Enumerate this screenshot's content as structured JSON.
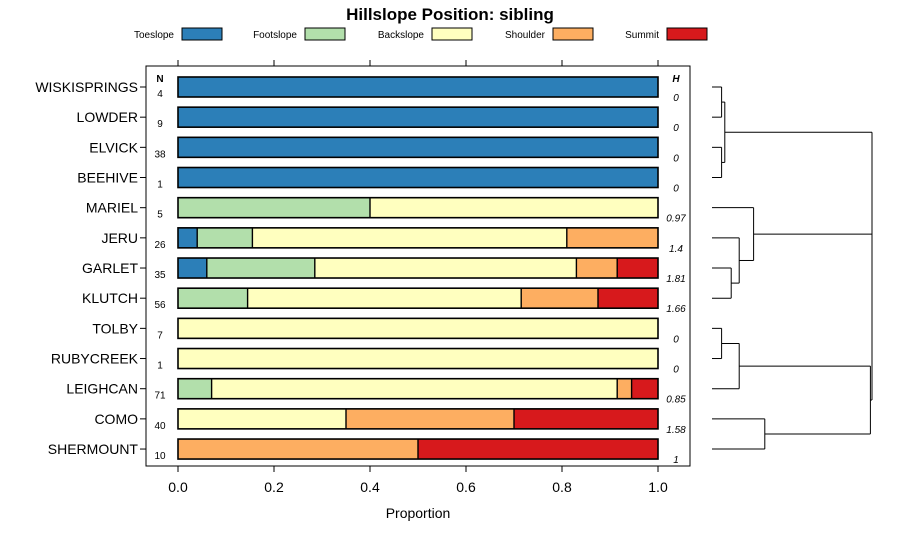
{
  "chart_data": {
    "type": "bar",
    "orientation": "horizontal",
    "stacked": true,
    "title": "Hillslope Position: sibling",
    "xlabel": "Proportion",
    "xlim": [
      0,
      1
    ],
    "x_ticks": [
      0.0,
      0.2,
      0.4,
      0.6,
      0.8,
      1.0
    ],
    "x_tick_labels": [
      "0.0",
      "0.2",
      "0.4",
      "0.6",
      "0.8",
      "1.0"
    ],
    "legend_position": "top",
    "n_header": "N",
    "h_header": "H",
    "categories": [
      "WISKISPRINGS",
      "LOWDER",
      "ELVICK",
      "BEEHIVE",
      "MARIEL",
      "JERU",
      "GARLET",
      "KLUTCH",
      "TOLBY",
      "RUBYCREEK",
      "LEIGHCAN",
      "COMO",
      "SHERMOUNT"
    ],
    "n": [
      "4",
      "9",
      "38",
      "1",
      "5",
      "26",
      "35",
      "56",
      "7",
      "1",
      "71",
      "40",
      "10"
    ],
    "h": [
      "0",
      "0",
      "0",
      "0",
      "0.97",
      "1.4",
      "1.81",
      "1.66",
      "0",
      "0",
      "0.85",
      "1.58",
      "1"
    ],
    "series": [
      {
        "name": "Toeslope",
        "color": "#2c7fb8",
        "values": [
          1.0,
          1.0,
          1.0,
          1.0,
          0.0,
          0.04,
          0.06,
          0.0,
          0.0,
          0.0,
          0.0,
          0.0,
          0.0
        ]
      },
      {
        "name": "Footslope",
        "color": "#b2dfab",
        "values": [
          0.0,
          0.0,
          0.0,
          0.0,
          0.4,
          0.115,
          0.225,
          0.145,
          0.0,
          0.0,
          0.07,
          0.0,
          0.0
        ]
      },
      {
        "name": "Backslope",
        "color": "#ffffbf",
        "values": [
          0.0,
          0.0,
          0.0,
          0.0,
          0.6,
          0.655,
          0.545,
          0.57,
          1.0,
          1.0,
          0.845,
          0.35,
          0.0
        ]
      },
      {
        "name": "Shoulder",
        "color": "#fdae61",
        "values": [
          0.0,
          0.0,
          0.0,
          0.0,
          0.0,
          0.19,
          0.085,
          0.16,
          0.0,
          0.0,
          0.03,
          0.35,
          0.5
        ]
      },
      {
        "name": "Summit",
        "color": "#d7191c",
        "values": [
          0.0,
          0.0,
          0.0,
          0.0,
          0.0,
          0.0,
          0.085,
          0.125,
          0.0,
          0.0,
          0.055,
          0.3,
          0.5
        ]
      }
    ],
    "dendrogram": {
      "leaves": [
        "WISKISPRINGS",
        "LOWDER",
        "ELVICK",
        "BEEHIVE",
        "MARIEL",
        "JERU",
        "GARLET",
        "KLUTCH",
        "TOLBY",
        "RUBYCREEK",
        "LEIGHCAN",
        "COMO",
        "SHERMOUNT"
      ],
      "merges": [
        {
          "a": "L0",
          "b": "L1",
          "h": 0.06
        },
        {
          "a": "L2",
          "b": "L3",
          "h": 0.06
        },
        {
          "a": "M0",
          "b": "M1",
          "h": 0.08
        },
        {
          "a": "L6",
          "b": "L7",
          "h": 0.12
        },
        {
          "a": "L5",
          "b": "M3",
          "h": 0.17
        },
        {
          "a": "L4",
          "b": "M4",
          "h": 0.26
        },
        {
          "a": "L8",
          "b": "L9",
          "h": 0.06
        },
        {
          "a": "M6",
          "b": "L10",
          "h": 0.17
        },
        {
          "a": "L11",
          "b": "L12",
          "h": 0.33
        },
        {
          "a": "M7",
          "b": "M8",
          "h": 0.99
        },
        {
          "a": "M5",
          "b": "M9",
          "h": 1.0
        },
        {
          "a": "M2",
          "b": "M10",
          "h": 1.0
        }
      ]
    }
  }
}
